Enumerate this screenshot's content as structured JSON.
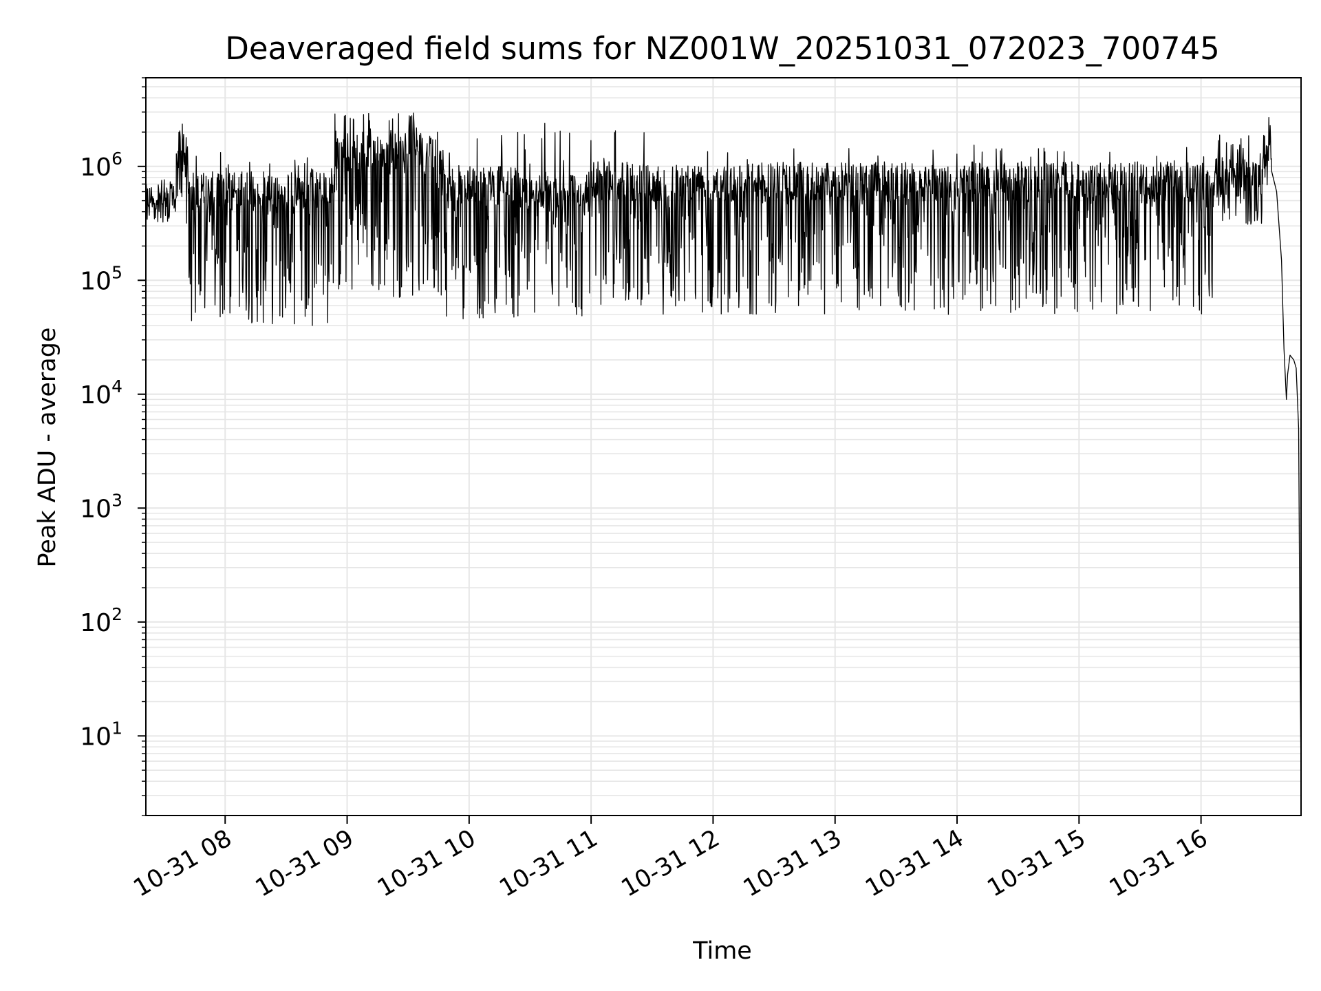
{
  "chart_data": {
    "type": "line",
    "title": "Deaveraged field sums for NZ001W_20251031_072023_700745",
    "xlabel": "Time",
    "ylabel": "Peak ADU - average",
    "yscale": "log",
    "ylim": [
      2,
      6000000
    ],
    "xlim_hours": [
      7.35,
      16.82
    ],
    "grid": true,
    "line_color": "#000000",
    "grid_color": "#e6e6e6",
    "x_ticks": [
      {
        "label": "10-31 08",
        "hour": 8
      },
      {
        "label": "10-31 09",
        "hour": 9
      },
      {
        "label": "10-31 10",
        "hour": 10
      },
      {
        "label": "10-31 11",
        "hour": 11
      },
      {
        "label": "10-31 12",
        "hour": 12
      },
      {
        "label": "10-31 13",
        "hour": 13
      },
      {
        "label": "10-31 14",
        "hour": 14
      },
      {
        "label": "10-31 15",
        "hour": 15
      },
      {
        "label": "10-31 16",
        "hour": 16
      }
    ],
    "y_ticks": [
      {
        "base": "10",
        "exp": "1",
        "value": 10
      },
      {
        "base": "10",
        "exp": "2",
        "value": 100
      },
      {
        "base": "10",
        "exp": "3",
        "value": 1000
      },
      {
        "base": "10",
        "exp": "4",
        "value": 10000
      },
      {
        "base": "10",
        "exp": "5",
        "value": 100000
      },
      {
        "base": "10",
        "exp": "6",
        "value": 1000000
      }
    ],
    "series": [
      {
        "name": "deaveraged field sum",
        "segments": [
          {
            "start": 7.35,
            "end": 7.6,
            "low": 400000,
            "high": 700000,
            "spike": 800000,
            "spike_rate": 0.05
          },
          {
            "start": 7.6,
            "end": 7.7,
            "low": 300000,
            "high": 2000000,
            "spike": 2400000,
            "spike_rate": 0.1
          },
          {
            "start": 7.7,
            "end": 8.9,
            "low": 40000,
            "high": 900000,
            "spike": 1400000,
            "spike_rate": 0.03
          },
          {
            "start": 8.9,
            "end": 9.8,
            "low": 70000,
            "high": 2000000,
            "spike": 3000000,
            "spike_rate": 0.08
          },
          {
            "start": 9.8,
            "end": 10.4,
            "low": 45000,
            "high": 1000000,
            "spike": 2000000,
            "spike_rate": 0.05
          },
          {
            "start": 10.4,
            "end": 11.0,
            "low": 45000,
            "high": 900000,
            "spike": 2600000,
            "spike_rate": 0.03
          },
          {
            "start": 11.0,
            "end": 11.5,
            "low": 60000,
            "high": 1100000,
            "spike": 2300000,
            "spike_rate": 0.05
          },
          {
            "start": 11.5,
            "end": 16.1,
            "low": 50000,
            "high": 1100000,
            "spike": 1600000,
            "spike_rate": 0.02
          },
          {
            "start": 16.1,
            "end": 16.5,
            "low": 300000,
            "high": 1200000,
            "spike": 1900000,
            "spike_rate": 0.05
          },
          {
            "start": 16.5,
            "end": 16.58,
            "low": 500000,
            "high": 2000000,
            "spike": 3100000,
            "spike_rate": 0.1
          }
        ],
        "tail": [
          {
            "hour": 16.58,
            "value": 900000
          },
          {
            "hour": 16.62,
            "value": 600000
          },
          {
            "hour": 16.66,
            "value": 150000
          },
          {
            "hour": 16.68,
            "value": 25000
          },
          {
            "hour": 16.7,
            "value": 9000
          },
          {
            "hour": 16.71,
            "value": 15000
          },
          {
            "hour": 16.73,
            "value": 22000
          },
          {
            "hour": 16.76,
            "value": 20000
          },
          {
            "hour": 16.78,
            "value": 17000
          },
          {
            "hour": 16.8,
            "value": 5000
          },
          {
            "hour": 16.81,
            "value": 100
          },
          {
            "hour": 16.82,
            "value": 4
          }
        ]
      }
    ]
  }
}
